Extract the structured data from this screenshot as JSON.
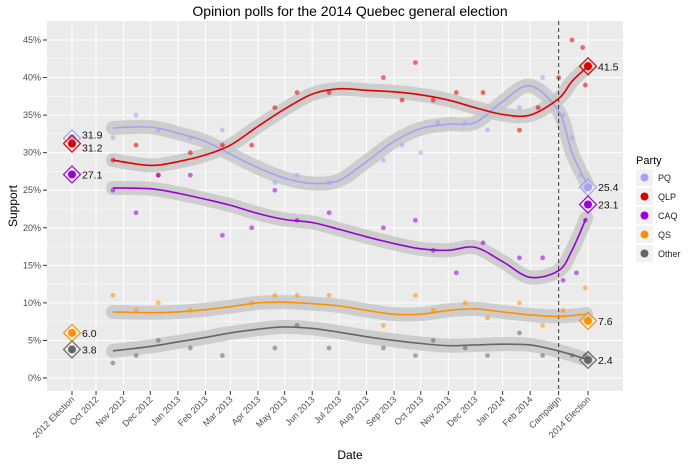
{
  "chart_data": {
    "type": "line",
    "title": "Opinion polls for the 2014 Quebec general election",
    "xlabel": "Date",
    "ylabel": "Support",
    "ylim": [
      0,
      45
    ],
    "yticks": [
      "0%",
      "5%",
      "10%",
      "15%",
      "20%",
      "25%",
      "30%",
      "35%",
      "40%",
      "45%"
    ],
    "xticks": [
      {
        "label": "2012 Election",
        "date": "2012-09-04"
      },
      {
        "label": "Oct 2012",
        "date": "2012-10-01"
      },
      {
        "label": "Nov 2012",
        "date": "2012-11-01"
      },
      {
        "label": "Dec 2012",
        "date": "2012-12-01"
      },
      {
        "label": "Jan 2013",
        "date": "2013-01-01"
      },
      {
        "label": "Feb 2013",
        "date": "2013-02-01"
      },
      {
        "label": "Mar 2013",
        "date": "2013-03-01"
      },
      {
        "label": "Apr 2013",
        "date": "2013-04-01"
      },
      {
        "label": "May 2013",
        "date": "2013-05-01"
      },
      {
        "label": "Jun 2013",
        "date": "2013-06-01"
      },
      {
        "label": "Jul 2013",
        "date": "2013-07-01"
      },
      {
        "label": "Aug 2013",
        "date": "2013-08-01"
      },
      {
        "label": "Sep 2013",
        "date": "2013-09-01"
      },
      {
        "label": "Oct 2013",
        "date": "2013-10-01"
      },
      {
        "label": "Nov 2013",
        "date": "2013-11-01"
      },
      {
        "label": "Dec 2013",
        "date": "2013-12-01"
      },
      {
        "label": "Jan 2014",
        "date": "2014-01-01"
      },
      {
        "label": "Feb 2014",
        "date": "2014-02-01"
      },
      {
        "label": "Campaign",
        "date": "2014-03-05"
      },
      {
        "label": "2014 Election",
        "date": "2014-04-07"
      }
    ],
    "campaign_marker": "2014-03-05",
    "grid": true,
    "legend": {
      "title": "Party",
      "placement": "right"
    },
    "series": [
      {
        "name": "PQ",
        "color": "#a3a3f5",
        "results": [
          [
            "2012-09-04",
            31.9
          ],
          [
            "2014-04-07",
            25.4
          ]
        ],
        "trend": [
          [
            "2012-10-20",
            33.3
          ],
          [
            "2012-12-01",
            33.4
          ],
          [
            "2013-01-01",
            32.6
          ],
          [
            "2013-02-01",
            31.5
          ],
          [
            "2013-03-01",
            29.8
          ],
          [
            "2013-04-01",
            28
          ],
          [
            "2013-05-01",
            26.6
          ],
          [
            "2013-06-01",
            25.9
          ],
          [
            "2013-07-01",
            26.3
          ],
          [
            "2013-08-01",
            28.8
          ],
          [
            "2013-09-01",
            31.5
          ],
          [
            "2013-10-01",
            33.2
          ],
          [
            "2013-11-01",
            33.8
          ],
          [
            "2013-12-01",
            34
          ],
          [
            "2014-01-01",
            36.8
          ],
          [
            "2014-02-01",
            38.9
          ],
          [
            "2014-03-05",
            35.5
          ],
          [
            "2014-03-20",
            30
          ],
          [
            "2014-04-05",
            26
          ]
        ],
        "polls": [
          [
            "2012-10-20",
            32
          ],
          [
            "2012-11-15",
            35
          ],
          [
            "2012-12-10",
            33
          ],
          [
            "2013-01-15",
            32
          ],
          [
            "2013-02-20",
            33
          ],
          [
            "2013-04-20",
            26
          ],
          [
            "2013-05-15",
            27
          ],
          [
            "2013-06-20",
            26
          ],
          [
            "2013-08-20",
            29
          ],
          [
            "2013-09-10",
            31
          ],
          [
            "2013-10-01",
            30
          ],
          [
            "2013-10-20",
            34
          ],
          [
            "2013-11-20",
            34
          ],
          [
            "2013-12-15",
            33
          ],
          [
            "2014-01-20",
            36
          ],
          [
            "2014-02-15",
            40
          ],
          [
            "2014-03-10",
            35
          ],
          [
            "2014-03-20",
            32
          ],
          [
            "2014-03-30",
            27
          ],
          [
            "2014-04-04",
            25
          ]
        ]
      },
      {
        "name": "QLP",
        "color": "#e00000",
        "results": [
          [
            "2012-09-04",
            31.2
          ],
          [
            "2014-04-07",
            41.5
          ]
        ],
        "trend": [
          [
            "2012-10-20",
            29
          ],
          [
            "2012-12-01",
            28.3
          ],
          [
            "2013-01-01",
            28.8
          ],
          [
            "2013-02-01",
            29.7
          ],
          [
            "2013-03-01",
            31
          ],
          [
            "2013-04-01",
            33.5
          ],
          [
            "2013-05-01",
            35.8
          ],
          [
            "2013-06-01",
            37.8
          ],
          [
            "2013-07-01",
            38.5
          ],
          [
            "2013-08-01",
            38.3
          ],
          [
            "2013-09-01",
            38.1
          ],
          [
            "2013-10-01",
            37.7
          ],
          [
            "2013-11-01",
            37
          ],
          [
            "2013-12-01",
            36
          ],
          [
            "2014-01-01",
            35.1
          ],
          [
            "2014-02-01",
            35
          ],
          [
            "2014-03-05",
            37.2
          ],
          [
            "2014-03-20",
            39.5
          ],
          [
            "2014-04-05",
            41.3
          ]
        ],
        "polls": [
          [
            "2012-10-20",
            29
          ],
          [
            "2012-11-15",
            31
          ],
          [
            "2012-12-10",
            27
          ],
          [
            "2013-01-15",
            30
          ],
          [
            "2013-02-20",
            31
          ],
          [
            "2013-03-25",
            31
          ],
          [
            "2013-04-20",
            36
          ],
          [
            "2013-05-15",
            38
          ],
          [
            "2013-06-20",
            38
          ],
          [
            "2013-08-20",
            40
          ],
          [
            "2013-09-10",
            37
          ],
          [
            "2013-09-25",
            42
          ],
          [
            "2013-10-15",
            37
          ],
          [
            "2013-11-10",
            38
          ],
          [
            "2013-12-10",
            38
          ],
          [
            "2014-01-20",
            33
          ],
          [
            "2014-02-10",
            36
          ],
          [
            "2014-03-05",
            40
          ],
          [
            "2014-03-20",
            45
          ],
          [
            "2014-04-01",
            44
          ],
          [
            "2014-04-04",
            39
          ]
        ]
      },
      {
        "name": "CAQ",
        "color": "#9b00d0",
        "results": [
          [
            "2012-09-04",
            27.1
          ],
          [
            "2014-04-07",
            23.1
          ]
        ],
        "trend": [
          [
            "2012-10-20",
            25.3
          ],
          [
            "2012-12-01",
            25.2
          ],
          [
            "2013-01-01",
            24.6
          ],
          [
            "2013-02-01",
            23.8
          ],
          [
            "2013-03-01",
            23
          ],
          [
            "2013-04-01",
            21.9
          ],
          [
            "2013-05-01",
            21.1
          ],
          [
            "2013-06-01",
            20.7
          ],
          [
            "2013-07-01",
            19.8
          ],
          [
            "2013-08-01",
            18.8
          ],
          [
            "2013-09-01",
            17.9
          ],
          [
            "2013-10-01",
            17.2
          ],
          [
            "2013-11-01",
            17
          ],
          [
            "2013-12-01",
            17.4
          ],
          [
            "2014-01-01",
            15.5
          ],
          [
            "2014-02-01",
            13.4
          ],
          [
            "2014-03-05",
            14.3
          ],
          [
            "2014-03-20",
            17
          ],
          [
            "2014-04-05",
            21.3
          ]
        ],
        "polls": [
          [
            "2012-10-20",
            25
          ],
          [
            "2012-11-15",
            22
          ],
          [
            "2012-12-10",
            27
          ],
          [
            "2013-01-15",
            27
          ],
          [
            "2013-02-20",
            19
          ],
          [
            "2013-03-25",
            20
          ],
          [
            "2013-04-20",
            25
          ],
          [
            "2013-05-15",
            21
          ],
          [
            "2013-06-20",
            22
          ],
          [
            "2013-08-20",
            20
          ],
          [
            "2013-09-25",
            21
          ],
          [
            "2013-10-15",
            17
          ],
          [
            "2013-11-10",
            14
          ],
          [
            "2013-12-10",
            18
          ],
          [
            "2014-01-20",
            16
          ],
          [
            "2014-02-15",
            16
          ],
          [
            "2014-03-10",
            13
          ],
          [
            "2014-03-25",
            14
          ],
          [
            "2014-04-04",
            21
          ]
        ]
      },
      {
        "name": "QS",
        "color": "#ff9100",
        "results": [
          [
            "2012-09-04",
            6.0
          ],
          [
            "2014-04-07",
            7.6
          ]
        ],
        "trend": [
          [
            "2012-10-20",
            8.8
          ],
          [
            "2012-12-01",
            8.7
          ],
          [
            "2013-01-01",
            8.8
          ],
          [
            "2013-02-01",
            9.1
          ],
          [
            "2013-03-01",
            9.5
          ],
          [
            "2013-04-01",
            10
          ],
          [
            "2013-05-01",
            10.1
          ],
          [
            "2013-06-01",
            9.9
          ],
          [
            "2013-07-01",
            9.6
          ],
          [
            "2013-08-01",
            9
          ],
          [
            "2013-09-01",
            8.5
          ],
          [
            "2013-10-01",
            8.5
          ],
          [
            "2013-11-01",
            9
          ],
          [
            "2013-12-01",
            9.2
          ],
          [
            "2014-01-01",
            8.8
          ],
          [
            "2014-02-01",
            8.4
          ],
          [
            "2014-03-05",
            8.2
          ],
          [
            "2014-04-05",
            8.5
          ]
        ],
        "polls": [
          [
            "2012-10-20",
            11
          ],
          [
            "2012-11-15",
            9
          ],
          [
            "2012-12-10",
            10
          ],
          [
            "2013-01-15",
            9
          ],
          [
            "2013-03-25",
            10
          ],
          [
            "2013-04-20",
            11
          ],
          [
            "2013-05-15",
            11
          ],
          [
            "2013-06-20",
            11
          ],
          [
            "2013-08-20",
            7
          ],
          [
            "2013-09-25",
            11
          ],
          [
            "2013-10-15",
            9
          ],
          [
            "2013-11-20",
            10
          ],
          [
            "2013-12-15",
            8
          ],
          [
            "2014-01-20",
            10
          ],
          [
            "2014-02-15",
            7
          ],
          [
            "2014-03-10",
            9
          ],
          [
            "2014-04-04",
            12
          ]
        ]
      },
      {
        "name": "Other",
        "color": "#666666",
        "results": [
          [
            "2012-09-04",
            3.8
          ],
          [
            "2014-04-07",
            2.4
          ]
        ],
        "trend": [
          [
            "2012-10-20",
            3.6
          ],
          [
            "2012-12-01",
            4.2
          ],
          [
            "2013-01-01",
            4.8
          ],
          [
            "2013-02-01",
            5.4
          ],
          [
            "2013-03-01",
            6
          ],
          [
            "2013-04-01",
            6.5
          ],
          [
            "2013-05-01",
            6.8
          ],
          [
            "2013-06-01",
            6.6
          ],
          [
            "2013-07-01",
            6.1
          ],
          [
            "2013-08-01",
            5.5
          ],
          [
            "2013-09-01",
            5
          ],
          [
            "2013-10-01",
            4.6
          ],
          [
            "2013-11-01",
            4.3
          ],
          [
            "2013-12-01",
            4.4
          ],
          [
            "2014-01-01",
            4.5
          ],
          [
            "2014-02-01",
            4.4
          ],
          [
            "2014-03-05",
            3.6
          ],
          [
            "2014-04-05",
            2.5
          ]
        ],
        "polls": [
          [
            "2012-10-20",
            2
          ],
          [
            "2012-11-15",
            3
          ],
          [
            "2012-12-10",
            5
          ],
          [
            "2013-01-15",
            4
          ],
          [
            "2013-02-20",
            3
          ],
          [
            "2013-04-20",
            4
          ],
          [
            "2013-05-15",
            7
          ],
          [
            "2013-06-20",
            4
          ],
          [
            "2013-08-20",
            4
          ],
          [
            "2013-09-25",
            3
          ],
          [
            "2013-10-15",
            5
          ],
          [
            "2013-11-20",
            4
          ],
          [
            "2013-12-15",
            3
          ],
          [
            "2014-01-20",
            6
          ],
          [
            "2014-02-15",
            3
          ],
          [
            "2014-03-20",
            3
          ],
          [
            "2014-04-04",
            3
          ]
        ]
      }
    ]
  }
}
